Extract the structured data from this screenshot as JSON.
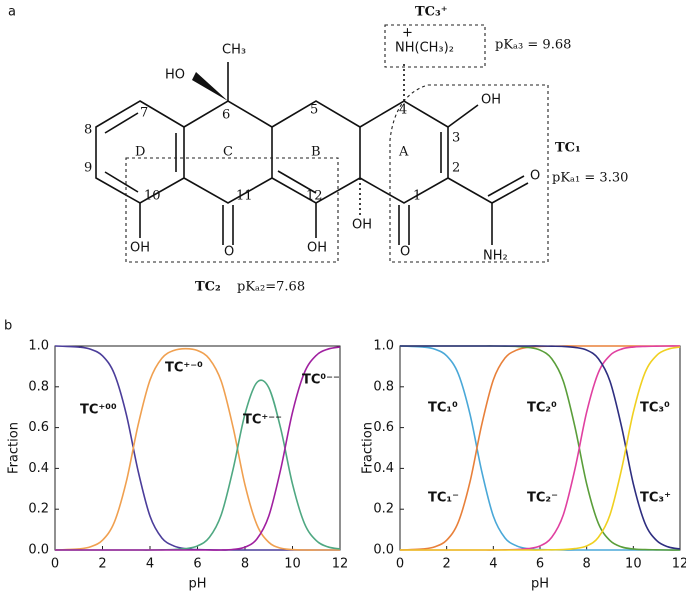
{
  "structure": {
    "panel_label": "a",
    "tc3": "TC₃⁺",
    "n_charge": "+",
    "n_group": "NH(CH₃)₂",
    "pka3": "pKₐ₃ = 9.68",
    "tc1": "TC₁",
    "pka1": "pKₐ₁ = 3.30",
    "tc2": "TC₂",
    "pka2": "pKₐ₂=7.68",
    "methyl": "CH₃",
    "ho6": "HO",
    "oh3": "OH",
    "oh10": "OH",
    "o11": "O",
    "oh12": "OH",
    "oh12a": "OH",
    "o1": "O",
    "o_amide": "O",
    "nh2": "NH₂",
    "rings": [
      "D",
      "C",
      "B",
      "A"
    ],
    "atom_numbers": [
      7,
      8,
      9,
      10,
      6,
      5,
      4,
      3,
      2,
      1,
      11,
      12
    ]
  },
  "panel_b_label": "b",
  "chart_data": [
    {
      "type": "line",
      "x_label": "pH",
      "y_label": "Fraction",
      "xlim": [
        0,
        12
      ],
      "xticks": [
        0,
        2,
        4,
        6,
        8,
        10,
        12
      ],
      "ylim": [
        0,
        1
      ],
      "yticks": [
        {
          "value": 0,
          "label": "0.0"
        },
        0.2,
        0.4,
        0.6,
        0.8,
        {
          "value": 1,
          "label": "1.0"
        }
      ],
      "x": [
        0,
        0.5,
        1,
        1.5,
        2,
        2.5,
        3,
        3.5,
        4,
        4.5,
        5,
        5.5,
        6,
        6.5,
        7,
        7.5,
        8,
        8.5,
        9,
        9.5,
        10,
        10.5,
        11,
        11.5,
        12
      ],
      "series": [
        {
          "name": "TC⁺⁰⁰",
          "color": "#4b3d9a",
          "values": [
            1.0,
            0.998,
            0.995,
            0.984,
            0.952,
            0.863,
            0.666,
            0.387,
            0.166,
            0.059,
            0.02,
            0.006,
            0.002,
            0.001,
            0,
            0,
            0,
            0,
            0,
            0,
            0,
            0,
            0,
            0,
            0
          ]
        },
        {
          "name": "TC⁺⁻⁰",
          "color": "#f0a050",
          "values": [
            0,
            0.002,
            0.005,
            0.016,
            0.048,
            0.137,
            0.334,
            0.613,
            0.833,
            0.94,
            0.978,
            0.987,
            0.978,
            0.937,
            0.827,
            0.6,
            0.319,
            0.124,
            0.038,
            0.009,
            0.002,
            0,
            0,
            0,
            0
          ]
        },
        {
          "name": "TC⁺⁻⁻",
          "color": "#4fa882",
          "values": [
            0,
            0,
            0,
            0,
            0,
            0,
            0,
            0,
            0,
            0.001,
            0.002,
            0.007,
            0.02,
            0.062,
            0.173,
            0.397,
            0.667,
            0.821,
            0.796,
            0.597,
            0.323,
            0.131,
            0.046,
            0.015,
            0.005
          ]
        },
        {
          "name": "TC⁰⁻⁻",
          "color": "#a020a0",
          "values": [
            0,
            0,
            0,
            0,
            0,
            0,
            0,
            0,
            0,
            0,
            0,
            0,
            0,
            0,
            0,
            0.003,
            0.014,
            0.054,
            0.166,
            0.394,
            0.675,
            0.869,
            0.954,
            0.985,
            0.995
          ]
        }
      ]
    },
    {
      "type": "line",
      "x_label": "pH",
      "y_label": "Fraction",
      "xlim": [
        0,
        12
      ],
      "xticks": [
        0,
        2,
        4,
        6,
        8,
        10,
        12
      ],
      "ylim": [
        0,
        1
      ],
      "yticks": [
        {
          "value": 0,
          "label": "0.0"
        },
        0.2,
        0.4,
        0.6,
        0.8,
        {
          "value": 1,
          "label": "1.0"
        }
      ],
      "x": [
        0,
        0.5,
        1,
        1.5,
        2,
        2.5,
        3,
        3.5,
        4,
        4.5,
        5,
        5.5,
        6,
        6.5,
        7,
        7.5,
        8,
        8.5,
        9,
        9.5,
        10,
        10.5,
        11,
        11.5,
        12
      ],
      "series": [
        {
          "name": "TC₁⁰",
          "color": "#4aa8d8",
          "values": [
            1.0,
            0.998,
            0.995,
            0.984,
            0.952,
            0.863,
            0.666,
            0.387,
            0.166,
            0.059,
            0.02,
            0.006,
            0.002,
            0.001,
            0,
            0,
            0,
            0,
            0,
            0,
            0,
            0,
            0,
            0,
            0
          ]
        },
        {
          "name": "TC₁⁻",
          "color": "#e8803a",
          "values": [
            0,
            0.002,
            0.005,
            0.016,
            0.048,
            0.137,
            0.334,
            0.613,
            0.834,
            0.941,
            0.98,
            0.994,
            0.998,
            0.999,
            1,
            1,
            1,
            1,
            1,
            1,
            1,
            1,
            1,
            1,
            1
          ]
        },
        {
          "name": "TC₂⁰",
          "color": "#5a9e3a",
          "values": [
            1,
            1,
            1,
            1,
            1,
            1,
            1,
            1,
            1,
            0.999,
            0.998,
            0.993,
            0.98,
            0.938,
            0.827,
            0.602,
            0.324,
            0.131,
            0.046,
            0.015,
            0.005,
            0.002,
            0.001,
            0,
            0
          ]
        },
        {
          "name": "TC₂⁻",
          "color": "#e040a0",
          "values": [
            0,
            0,
            0,
            0,
            0,
            0,
            0,
            0,
            0,
            0.001,
            0.002,
            0.007,
            0.02,
            0.062,
            0.173,
            0.398,
            0.676,
            0.869,
            0.954,
            0.985,
            0.995,
            0.998,
            0.999,
            1,
            1
          ]
        },
        {
          "name": "TC₃⁺",
          "color": "#2e2e80",
          "values": [
            1,
            1,
            1,
            1,
            1,
            1,
            1,
            1,
            1,
            1,
            1,
            1,
            1,
            0.999,
            0.998,
            0.993,
            0.98,
            0.938,
            0.827,
            0.602,
            0.324,
            0.131,
            0.046,
            0.015,
            0.005
          ]
        },
        {
          "name": "TC₃⁰",
          "color": "#f0d020",
          "values": [
            0,
            0,
            0,
            0,
            0,
            0,
            0,
            0,
            0,
            0,
            0,
            0,
            0,
            0.001,
            0.002,
            0.007,
            0.02,
            0.062,
            0.173,
            0.398,
            0.676,
            0.869,
            0.954,
            0.985,
            0.995
          ]
        }
      ]
    }
  ]
}
